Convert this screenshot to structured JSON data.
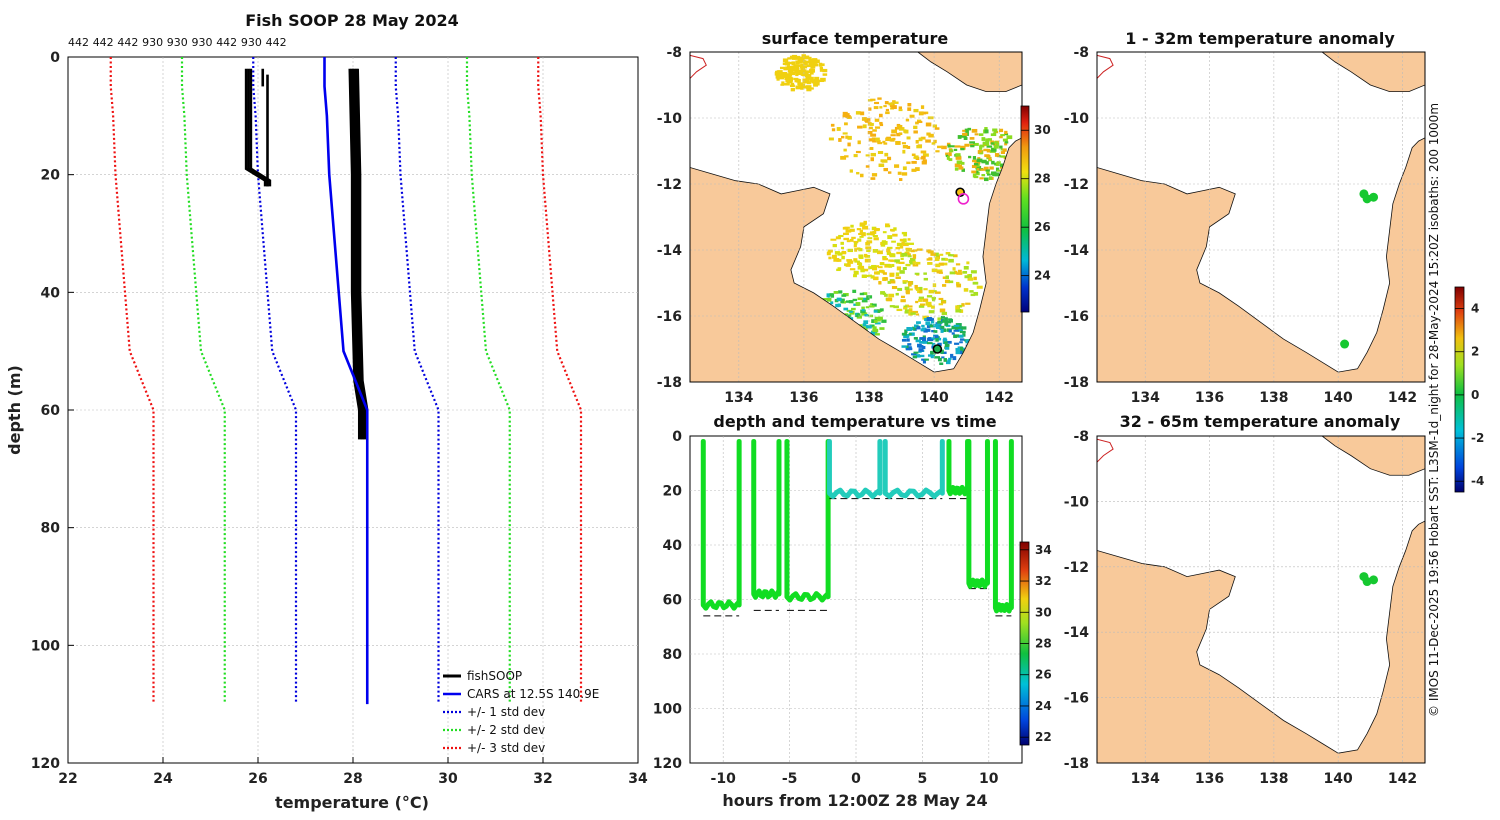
{
  "figure_title": "Fish SOOP 28 May 2024",
  "credit": "© IMOS 11-Dec-2025 19:56 Hobart SST: L3SM-1d_night for 28-May-2024 15:20Z  isobaths: 200  1000m",
  "colors": {
    "land": "#f8c99a",
    "coast": "#111111",
    "grid": "#bbbbbb",
    "fishsoop": "#000000",
    "cars": "#0000ee",
    "std1": "#0000dd",
    "std2": "#22dd22",
    "std3": "#ee1111",
    "isobath": "#cc2222",
    "green_series": "#11dd22",
    "teal_series": "#22ccbb"
  },
  "chart_data": [
    {
      "type": "line",
      "id": "profile",
      "title": "Fish SOOP 28 May 2024",
      "top_annotations": [
        "442",
        "442",
        "442",
        "930",
        "930",
        "930",
        "442",
        "930",
        "442"
      ],
      "xlabel": "temperature (°C)",
      "ylabel": "depth (m)",
      "xlim": [
        22,
        34
      ],
      "ylim": [
        0,
        120
      ],
      "y_inverted": true,
      "xticks": [
        22,
        24,
        26,
        28,
        30,
        32,
        34
      ],
      "yticks": [
        0,
        20,
        40,
        60,
        80,
        100,
        120
      ],
      "grid": true,
      "legend_position": "bottom-right",
      "legend": [
        "fishSOOP",
        "CARS at 12.5S 140.9E",
        "+/- 1 std dev",
        "+/- 2 std dev",
        "+/- 3 std dev"
      ],
      "cars_mean": {
        "depth": [
          0,
          5,
          10,
          20,
          30,
          40,
          50,
          55,
          60,
          110
        ],
        "temp": [
          27.4,
          27.4,
          27.45,
          27.5,
          27.6,
          27.7,
          27.8,
          28.05,
          28.3,
          28.3
        ]
      },
      "std_offsets": {
        "std1": 1.5,
        "std2": 3.0,
        "std3": 4.5
      },
      "fishsoop_shallow": {
        "depth": [
          2,
          19,
          20,
          21,
          22
        ],
        "temp": [
          25.8,
          25.8,
          26.0,
          26.2,
          26.2
        ]
      },
      "fishsoop_deep": {
        "depth": [
          2,
          20,
          40,
          55,
          60,
          65
        ],
        "temp": [
          28.0,
          28.05,
          28.05,
          28.1,
          28.2,
          28.2
        ]
      }
    },
    {
      "type": "map",
      "id": "sst",
      "title": "surface temperature",
      "xlim": [
        132.5,
        142.7
      ],
      "ylim": [
        -18,
        -8
      ],
      "xticks": [
        134,
        136,
        138,
        140,
        142
      ],
      "yticks": [
        -8,
        -10,
        -12,
        -14,
        -16,
        -18
      ],
      "colorbar": {
        "ticks": [
          24,
          26,
          28,
          30
        ],
        "range": [
          22.5,
          31
        ]
      },
      "markers": [
        {
          "lon": 140.8,
          "lat": -12.25,
          "kind": "vessel-start"
        },
        {
          "lon": 140.9,
          "lat": -12.45,
          "kind": "vessel-current"
        },
        {
          "lon": 140.1,
          "lat": -17.0,
          "kind": "vessel-port"
        }
      ]
    },
    {
      "type": "map",
      "id": "anom1",
      "title": "1 - 32m temperature anomaly",
      "xlim": [
        132.5,
        142.7
      ],
      "ylim": [
        -18,
        -8
      ],
      "xticks": [
        134,
        136,
        138,
        140,
        142
      ],
      "yticks": [
        -8,
        -10,
        -12,
        -14,
        -16,
        -18
      ],
      "colorbar": {
        "ticks": [
          4,
          2,
          0,
          -2,
          -4
        ],
        "range": [
          -4.5,
          5
        ]
      },
      "anomaly_points": [
        {
          "lon": 140.8,
          "lat": -12.3
        },
        {
          "lon": 140.9,
          "lat": -12.45
        },
        {
          "lon": 141.1,
          "lat": -12.4
        },
        {
          "lon": 140.2,
          "lat": -16.85
        }
      ]
    },
    {
      "type": "scatter",
      "id": "depthtime",
      "title": "depth and temperature vs time",
      "xlabel": "hours from 12:00Z 28 May 24",
      "xlim": [
        -12.5,
        12.5
      ],
      "ylim": [
        0,
        120
      ],
      "y_inverted": true,
      "xticks": [
        -10,
        -5,
        0,
        5,
        10
      ],
      "yticks": [
        0,
        20,
        40,
        60,
        80,
        100,
        120
      ],
      "colorbar": {
        "ticks": [
          34,
          32,
          30,
          28,
          26,
          24,
          22
        ],
        "range": [
          21.5,
          34.5
        ]
      },
      "casts": [
        {
          "t0": -11.5,
          "t1": -8.8,
          "depth": 62,
          "temp": 28,
          "bottom": 66
        },
        {
          "t0": -7.7,
          "t1": -5.8,
          "depth": 58,
          "temp": 28,
          "bottom": 64
        },
        {
          "t0": -5.2,
          "t1": -2.1,
          "depth": 59,
          "temp": 28,
          "bottom": 64
        },
        {
          "t0": -2.0,
          "t1": 1.8,
          "depth": 21,
          "temp": 26,
          "bottom": 23
        },
        {
          "t0": 2.2,
          "t1": 6.5,
          "depth": 21,
          "temp": 26,
          "bottom": 23
        },
        {
          "t0": 7.0,
          "t1": 8.4,
          "depth": 20,
          "temp": 28,
          "bottom": 23
        },
        {
          "t0": 8.5,
          "t1": 9.9,
          "depth": 54,
          "temp": 28,
          "bottom": 56
        },
        {
          "t0": 10.5,
          "t1": 11.7,
          "depth": 63,
          "temp": 28,
          "bottom": 66
        }
      ]
    },
    {
      "type": "map",
      "id": "anom2",
      "title": "32 - 65m temperature anomaly",
      "xlim": [
        132.5,
        142.7
      ],
      "ylim": [
        -18,
        -8
      ],
      "xticks": [
        134,
        136,
        138,
        140,
        142
      ],
      "yticks": [
        -8,
        -10,
        -12,
        -14,
        -16,
        -18
      ],
      "anomaly_points": [
        {
          "lon": 140.8,
          "lat": -12.3
        },
        {
          "lon": 140.9,
          "lat": -12.45
        },
        {
          "lon": 141.1,
          "lat": -12.4
        }
      ]
    }
  ]
}
